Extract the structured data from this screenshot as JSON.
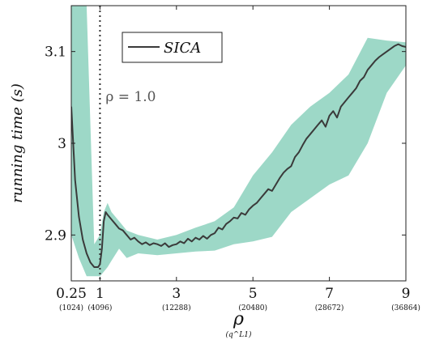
{
  "chart_data": {
    "type": "line",
    "xlabel": "ρ",
    "xlabel_sub": "(q^L1)",
    "ylabel": "running time (s)",
    "xlim": [
      0.25,
      9
    ],
    "ylim": [
      2.85,
      3.15
    ],
    "grid": false,
    "legend_position": "top-left",
    "x_ticks": [
      {
        "value": 0.25,
        "label": "0.25",
        "sub": "(1024)"
      },
      {
        "value": 1,
        "label": "1",
        "sub": "(4096)"
      },
      {
        "value": 3,
        "label": "3",
        "sub": "(12288)"
      },
      {
        "value": 5,
        "label": "5",
        "sub": "(20480)"
      },
      {
        "value": 7,
        "label": "7",
        "sub": "(28672)"
      },
      {
        "value": 9,
        "label": "9",
        "sub": "(36864)"
      }
    ],
    "y_ticks": [
      {
        "value": 2.9,
        "label": "2.9"
      },
      {
        "value": 3.0,
        "label": "3"
      },
      {
        "value": 3.1,
        "label": "3.1"
      }
    ],
    "annotation": {
      "x": 1.0,
      "text": "ρ = 1.0"
    },
    "series": [
      {
        "name": "SICA",
        "color": "#3a3a3a",
        "x": [
          0.25,
          0.35,
          0.45,
          0.55,
          0.65,
          0.75,
          0.85,
          0.95,
          1.0,
          1.05,
          1.1,
          1.15,
          1.2,
          1.3,
          1.4,
          1.5,
          1.6,
          1.7,
          1.8,
          1.9,
          2.0,
          2.1,
          2.2,
          2.3,
          2.4,
          2.5,
          2.6,
          2.7,
          2.8,
          2.9,
          3.0,
          3.1,
          3.2,
          3.3,
          3.4,
          3.5,
          3.6,
          3.7,
          3.8,
          3.9,
          4.0,
          4.1,
          4.2,
          4.3,
          4.4,
          4.5,
          4.6,
          4.7,
          4.8,
          4.9,
          5.0,
          5.1,
          5.2,
          5.3,
          5.4,
          5.5,
          5.6,
          5.7,
          5.8,
          5.9,
          6.0,
          6.1,
          6.2,
          6.3,
          6.4,
          6.5,
          6.6,
          6.7,
          6.8,
          6.9,
          7.0,
          7.1,
          7.2,
          7.3,
          7.4,
          7.5,
          7.6,
          7.7,
          7.8,
          7.9,
          8.0,
          8.1,
          8.2,
          8.3,
          8.4,
          8.5,
          8.6,
          8.7,
          8.8,
          8.9,
          9.0
        ],
        "y": [
          3.04,
          2.96,
          2.92,
          2.895,
          2.88,
          2.87,
          2.865,
          2.865,
          2.868,
          2.885,
          2.915,
          2.925,
          2.922,
          2.917,
          2.912,
          2.907,
          2.905,
          2.9,
          2.895,
          2.897,
          2.893,
          2.89,
          2.892,
          2.889,
          2.891,
          2.89,
          2.888,
          2.891,
          2.887,
          2.889,
          2.89,
          2.893,
          2.891,
          2.896,
          2.893,
          2.897,
          2.895,
          2.899,
          2.896,
          2.9,
          2.902,
          2.908,
          2.906,
          2.912,
          2.915,
          2.919,
          2.918,
          2.924,
          2.922,
          2.928,
          2.932,
          2.935,
          2.94,
          2.945,
          2.95,
          2.948,
          2.955,
          2.962,
          2.968,
          2.972,
          2.975,
          2.985,
          2.99,
          2.998,
          3.005,
          3.01,
          3.015,
          3.02,
          3.025,
          3.018,
          3.03,
          3.035,
          3.028,
          3.04,
          3.045,
          3.05,
          3.055,
          3.06,
          3.068,
          3.072,
          3.08,
          3.085,
          3.09,
          3.094,
          3.097,
          3.1,
          3.103,
          3.106,
          3.108,
          3.106,
          3.105
        ]
      }
    ],
    "band": {
      "color": "#9dd8c7",
      "x": [
        0.25,
        0.45,
        0.65,
        0.85,
        1.0,
        1.1,
        1.2,
        1.3,
        1.5,
        1.7,
        2.0,
        2.5,
        3.0,
        3.5,
        4.0,
        4.5,
        5.0,
        5.5,
        6.0,
        6.5,
        7.0,
        7.5,
        8.0,
        8.5,
        9.0
      ],
      "upper": [
        3.15,
        3.15,
        3.15,
        2.89,
        2.9,
        2.925,
        2.935,
        2.925,
        2.915,
        2.905,
        2.9,
        2.895,
        2.9,
        2.908,
        2.915,
        2.93,
        2.965,
        2.99,
        3.02,
        3.04,
        3.055,
        3.075,
        3.115,
        3.112,
        3.11
      ],
      "lower": [
        2.9,
        2.875,
        2.855,
        2.855,
        2.855,
        2.86,
        2.865,
        2.872,
        2.885,
        2.875,
        2.88,
        2.878,
        2.88,
        2.882,
        2.883,
        2.89,
        2.893,
        2.898,
        2.925,
        2.94,
        2.955,
        2.965,
        3.0,
        3.055,
        3.085
      ]
    }
  }
}
